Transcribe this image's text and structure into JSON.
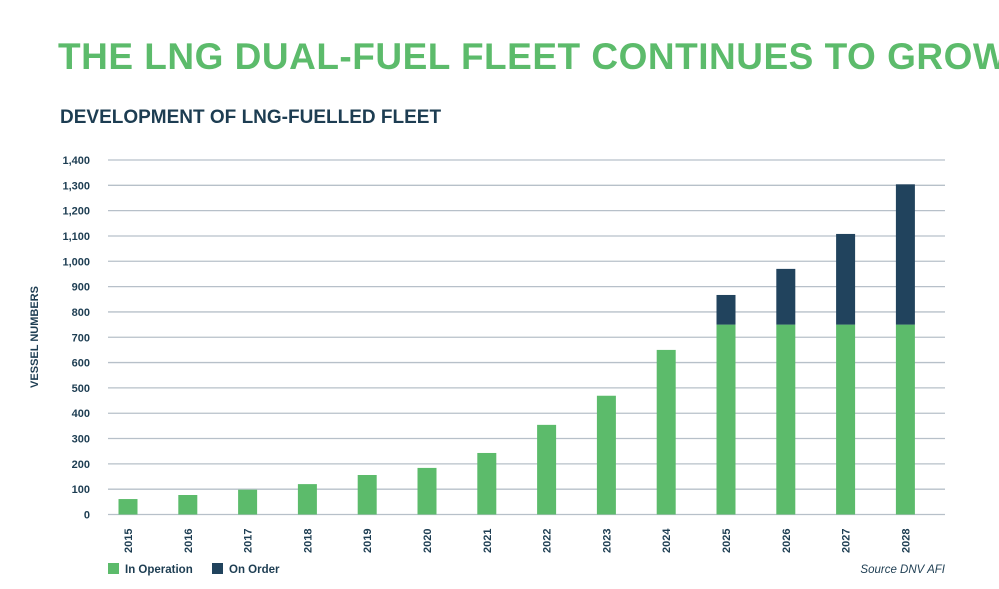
{
  "title": "THE LNG DUAL-FUEL FLEET CONTINUES TO GROW",
  "subtitle": "DEVELOPMENT OF LNG-FUELLED FLEET",
  "source": "Source DNV AFI",
  "chart_data": {
    "type": "bar",
    "stacked": true,
    "title": "DEVELOPMENT OF LNG-FUELLED FLEET",
    "xlabel": "",
    "ylabel": "VESSEL NUMBERS",
    "ylim": [
      0,
      1400
    ],
    "yticks": [
      "0",
      "100",
      "200",
      "300",
      "400",
      "500",
      "600",
      "700",
      "800",
      "900",
      "1,000",
      "1,100",
      "1,200",
      "1,300",
      "1,400"
    ],
    "grid": true,
    "legend_position": "bottom-left",
    "categories": [
      "2015",
      "2016",
      "2017",
      "2018",
      "2019",
      "2020",
      "2021",
      "2022",
      "2023",
      "2024",
      "2025",
      "2026",
      "2027",
      "2028"
    ],
    "series": [
      {
        "name": "In Operation",
        "color": "#5cbb6b",
        "values": [
          61,
          77,
          98,
          120,
          156,
          184,
          243,
          354,
          469,
          650,
          750,
          750,
          750,
          750
        ]
      },
      {
        "name": "On Order",
        "color": "#21435d",
        "values": [
          0,
          0,
          0,
          0,
          0,
          0,
          0,
          0,
          0,
          0,
          117,
          220,
          358,
          554
        ]
      }
    ]
  }
}
